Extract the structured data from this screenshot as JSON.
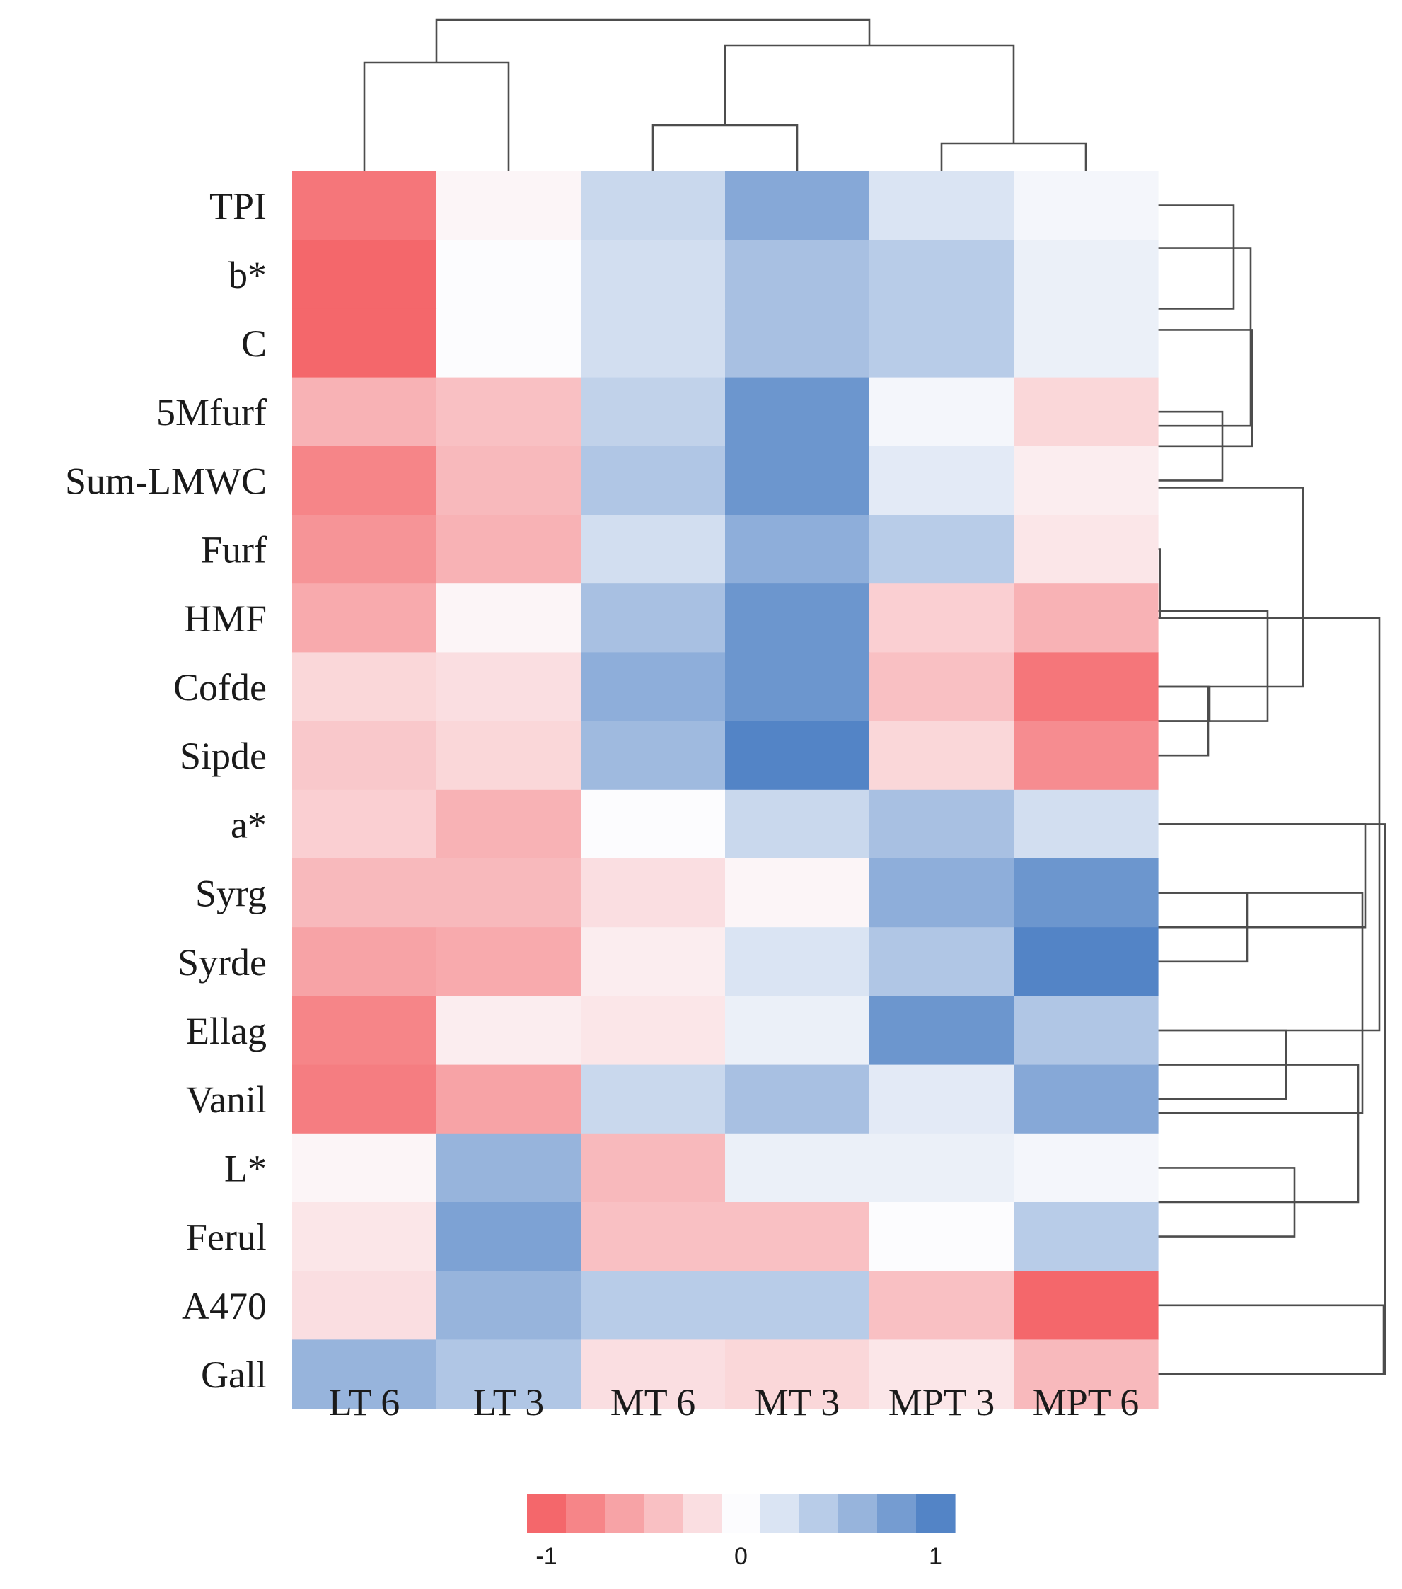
{
  "chart_data": {
    "type": "heatmap",
    "title": "",
    "columns": [
      "LT 6",
      "LT 3",
      "MT 6",
      "MT 3",
      "MPT 3",
      "MPT 6"
    ],
    "rows": [
      "TPI",
      "b*",
      "C",
      "5Mfurf",
      "Sum-LMWC",
      "Furf",
      "HMF",
      "Cofde",
      "Sipde",
      "a*",
      "Syrg",
      "Syrde",
      "Ellag",
      "Vanil",
      "L*",
      "Ferul",
      "A470",
      "Gall"
    ],
    "values": [
      [
        -0.9,
        -0.05,
        0.3,
        0.7,
        0.2,
        0.05
      ],
      [
        -1.0,
        0.0,
        0.25,
        0.5,
        0.4,
        0.1
      ],
      [
        -1.0,
        0.0,
        0.25,
        0.5,
        0.4,
        0.1
      ],
      [
        -0.5,
        -0.4,
        0.35,
        0.85,
        0.05,
        -0.25
      ],
      [
        -0.8,
        -0.45,
        0.45,
        0.85,
        0.15,
        -0.1
      ],
      [
        -0.7,
        -0.5,
        0.25,
        0.65,
        0.4,
        -0.15
      ],
      [
        -0.55,
        -0.05,
        0.5,
        0.85,
        -0.3,
        -0.5
      ],
      [
        -0.25,
        -0.2,
        0.65,
        0.85,
        -0.4,
        -0.9
      ],
      [
        -0.35,
        -0.25,
        0.55,
        1.0,
        -0.25,
        -0.75
      ],
      [
        -0.3,
        -0.5,
        0.0,
        0.3,
        0.5,
        0.25
      ],
      [
        -0.45,
        -0.45,
        -0.2,
        -0.05,
        0.65,
        0.85
      ],
      [
        -0.6,
        -0.55,
        -0.1,
        0.2,
        0.45,
        1.0
      ],
      [
        -0.8,
        -0.1,
        -0.15,
        0.1,
        0.85,
        0.45
      ],
      [
        -0.85,
        -0.6,
        0.3,
        0.5,
        0.15,
        0.7
      ],
      [
        -0.05,
        0.6,
        -0.45,
        0.1,
        0.1,
        0.05
      ],
      [
        -0.15,
        0.75,
        -0.4,
        -0.4,
        0.0,
        0.4
      ],
      [
        -0.2,
        0.6,
        0.4,
        0.4,
        -0.4,
        -1.0
      ],
      [
        0.6,
        0.45,
        -0.2,
        -0.25,
        -0.15,
        -0.45
      ]
    ],
    "color_scale": {
      "min": -1,
      "mid": 0,
      "max": 1,
      "low_color": "#f4676b",
      "mid_color": "#fcfcfe",
      "high_color": "#5384c6",
      "steps": 11
    },
    "legend": {
      "placement": "bottom-center",
      "tick_labels": [
        "-1",
        "0",
        "1"
      ],
      "tick_values": [
        -1,
        0,
        1
      ]
    },
    "column_dendrogram": true,
    "row_dendrogram": true
  }
}
